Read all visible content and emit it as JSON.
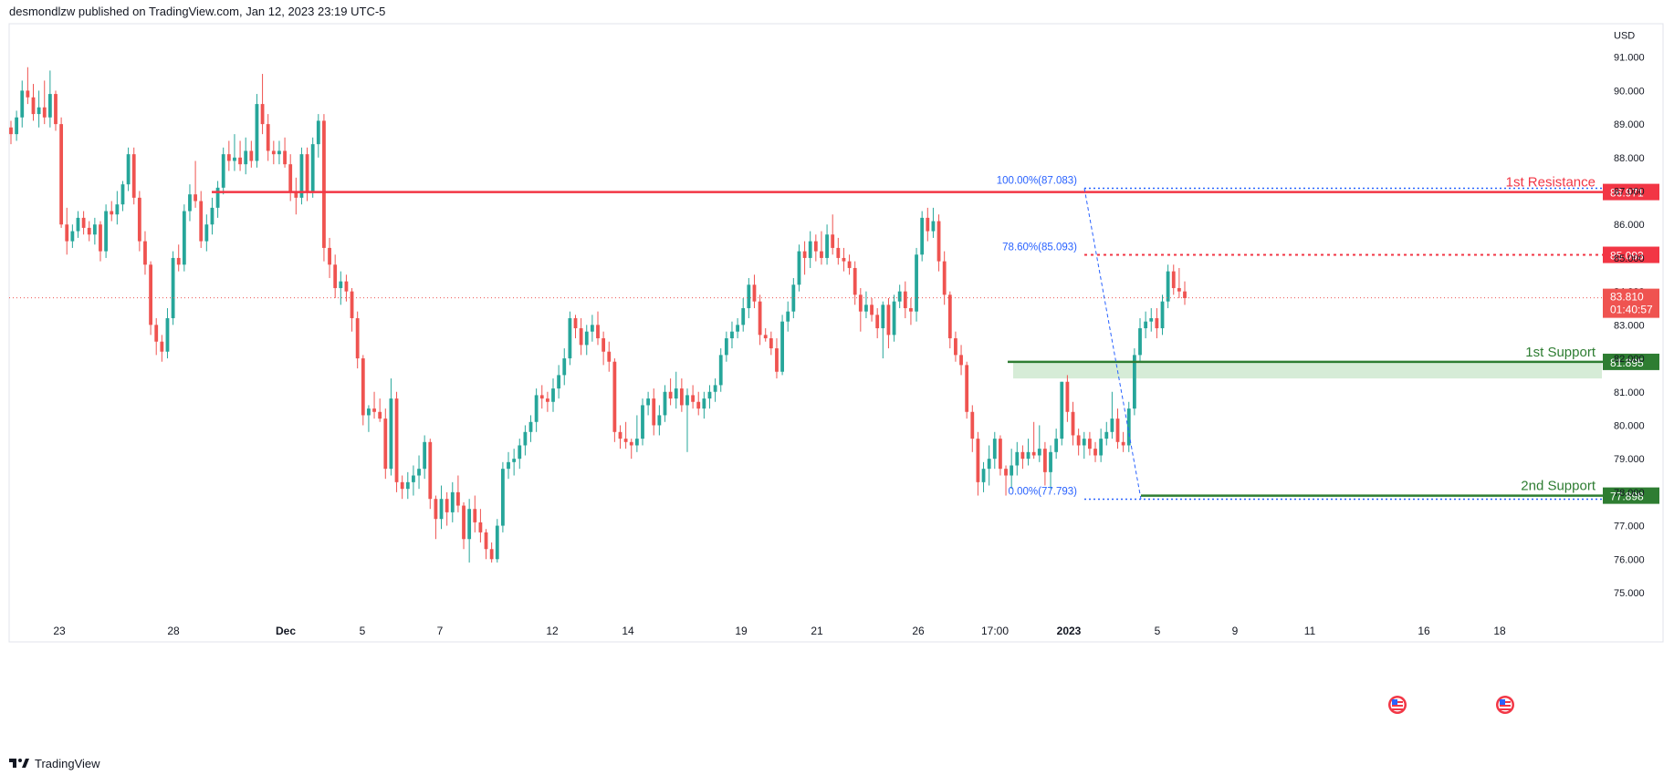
{
  "header": {
    "published": "desmondlzw published on TradingView.com, Jan 12, 2023 23:19 UTC-5"
  },
  "footer": {
    "brand": "TradingView"
  },
  "colors": {
    "up": "#26a69a",
    "down": "#ef5350",
    "resistance": "#f23645",
    "support": "#2e7d32",
    "fib": "#2962ff",
    "zone": "#c8e6c9",
    "axis_text": "#131722"
  },
  "chart_data": {
    "type": "candlestick",
    "currency": "USD",
    "ylim": [
      74.4,
      92.0
    ],
    "y_ticks": [
      "75.000",
      "76.000",
      "77.000",
      "78.000",
      "79.000",
      "80.000",
      "81.000",
      "82.000",
      "83.000",
      "84.000",
      "85.000",
      "86.000",
      "87.000",
      "88.000",
      "89.000",
      "90.000",
      "91.000"
    ],
    "x_ticks": [
      "23",
      "28",
      "Dec",
      "5",
      "7",
      "12",
      "14",
      "19",
      "21",
      "26",
      "17:00",
      "2023",
      "5",
      "9",
      "11",
      "16",
      "18"
    ],
    "levels": [
      {
        "name": "1st Resistance",
        "price": "86.971",
        "kind": "resistance"
      },
      {
        "name": "1st Support",
        "price": "81.895",
        "kind": "support"
      },
      {
        "name": "2nd Support",
        "price": "77.898",
        "kind": "support"
      }
    ],
    "fib": [
      {
        "label": "100.00%(87.083)",
        "price": 87.083
      },
      {
        "label": "78.60%(85.093)",
        "price": 85.093
      },
      {
        "label": "0.00%(77.793)",
        "price": 77.793
      }
    ],
    "fib_marker": {
      "price": "85.093"
    },
    "current": {
      "price": "83.810",
      "countdown": "01:40:57",
      "value": 83.81
    },
    "support_zone": [
      81.4,
      81.895
    ],
    "candles": [
      [
        88.9,
        89.1,
        88.4,
        88.7
      ],
      [
        88.7,
        89.4,
        88.5,
        89.2
      ],
      [
        89.2,
        90.3,
        88.9,
        90.0
      ],
      [
        90.0,
        90.7,
        89.6,
        89.8
      ],
      [
        89.8,
        90.2,
        89.1,
        89.3
      ],
      [
        89.3,
        90.0,
        88.9,
        89.5
      ],
      [
        89.5,
        90.3,
        89.0,
        89.2
      ],
      [
        89.2,
        90.6,
        88.9,
        89.9
      ],
      [
        89.9,
        90.0,
        88.8,
        89.0
      ],
      [
        89.0,
        89.2,
        85.9,
        86.0
      ],
      [
        86.0,
        86.5,
        85.1,
        85.5
      ],
      [
        85.5,
        86.0,
        85.3,
        85.8
      ],
      [
        85.8,
        86.4,
        85.6,
        86.2
      ],
      [
        86.2,
        86.4,
        85.7,
        85.9
      ],
      [
        85.9,
        86.1,
        85.5,
        85.7
      ],
      [
        85.7,
        86.2,
        85.4,
        86.0
      ],
      [
        86.0,
        86.1,
        84.9,
        85.2
      ],
      [
        85.2,
        86.6,
        85.0,
        86.4
      ],
      [
        86.4,
        86.7,
        86.1,
        86.3
      ],
      [
        86.3,
        87.0,
        86.0,
        86.6
      ],
      [
        86.6,
        87.3,
        86.4,
        87.2
      ],
      [
        87.2,
        88.3,
        87.0,
        88.1
      ],
      [
        88.1,
        88.3,
        86.6,
        86.8
      ],
      [
        86.8,
        87.0,
        85.2,
        85.5
      ],
      [
        85.5,
        85.8,
        84.5,
        84.8
      ],
      [
        84.8,
        84.9,
        82.7,
        83.0
      ],
      [
        83.0,
        83.2,
        82.1,
        82.5
      ],
      [
        82.5,
        82.7,
        81.9,
        82.2
      ],
      [
        82.2,
        83.5,
        82.0,
        83.2
      ],
      [
        83.2,
        85.2,
        83.0,
        85.0
      ],
      [
        85.0,
        85.4,
        84.6,
        84.8
      ],
      [
        84.8,
        86.6,
        84.6,
        86.4
      ],
      [
        86.4,
        87.2,
        86.1,
        86.9
      ],
      [
        86.9,
        87.9,
        86.5,
        86.7
      ],
      [
        86.7,
        87.0,
        85.3,
        85.5
      ],
      [
        85.5,
        86.3,
        85.2,
        86.0
      ],
      [
        86.0,
        86.8,
        85.7,
        86.5
      ],
      [
        86.5,
        87.3,
        86.2,
        87.1
      ],
      [
        87.1,
        88.3,
        86.9,
        88.1
      ],
      [
        88.1,
        88.5,
        87.6,
        87.9
      ],
      [
        87.9,
        88.7,
        87.6,
        88.0
      ],
      [
        88.0,
        88.5,
        87.6,
        87.8
      ],
      [
        87.8,
        88.6,
        87.5,
        88.2
      ],
      [
        88.2,
        88.5,
        87.7,
        87.9
      ],
      [
        87.9,
        89.9,
        87.7,
        89.6
      ],
      [
        89.6,
        90.5,
        88.7,
        89.0
      ],
      [
        89.0,
        89.3,
        87.9,
        88.2
      ],
      [
        88.2,
        88.5,
        87.8,
        88.1
      ],
      [
        88.1,
        88.5,
        87.8,
        88.2
      ],
      [
        88.2,
        88.6,
        87.7,
        87.8
      ],
      [
        87.8,
        88.1,
        86.7,
        87.0
      ],
      [
        87.0,
        87.4,
        86.3,
        86.8
      ],
      [
        86.8,
        88.3,
        86.6,
        88.1
      ],
      [
        88.1,
        88.3,
        86.7,
        87.0
      ],
      [
        87.0,
        88.6,
        86.8,
        88.4
      ],
      [
        88.4,
        89.3,
        88.0,
        89.1
      ],
      [
        89.1,
        89.3,
        84.9,
        85.3
      ],
      [
        85.3,
        85.6,
        84.4,
        84.8
      ],
      [
        84.8,
        85.1,
        83.8,
        84.1
      ],
      [
        84.1,
        84.6,
        83.6,
        84.3
      ],
      [
        84.3,
        84.5,
        83.7,
        84.0
      ],
      [
        84.0,
        84.1,
        82.8,
        83.2
      ],
      [
        83.2,
        83.4,
        81.7,
        82.0
      ],
      [
        82.0,
        82.1,
        80.0,
        80.3
      ],
      [
        80.3,
        80.6,
        79.8,
        80.5
      ],
      [
        80.5,
        81.0,
        80.2,
        80.4
      ],
      [
        80.4,
        80.8,
        80.1,
        80.2
      ],
      [
        80.2,
        80.5,
        78.4,
        78.7
      ],
      [
        78.7,
        81.4,
        78.5,
        80.8
      ],
      [
        80.8,
        81.0,
        78.0,
        78.3
      ],
      [
        78.3,
        78.5,
        77.8,
        78.1
      ],
      [
        78.1,
        78.6,
        77.8,
        78.3
      ],
      [
        78.3,
        78.8,
        77.9,
        78.5
      ],
      [
        78.5,
        79.1,
        78.1,
        78.7
      ],
      [
        78.7,
        79.7,
        78.4,
        79.5
      ],
      [
        79.5,
        79.6,
        77.5,
        77.8
      ],
      [
        77.8,
        77.9,
        76.6,
        77.2
      ],
      [
        77.2,
        78.2,
        76.9,
        77.8
      ],
      [
        77.8,
        78.0,
        77.0,
        77.4
      ],
      [
        77.4,
        78.3,
        77.1,
        78.0
      ],
      [
        78.0,
        78.5,
        77.4,
        77.6
      ],
      [
        77.6,
        77.7,
        76.3,
        76.6
      ],
      [
        76.6,
        77.8,
        75.9,
        77.5
      ],
      [
        77.5,
        77.9,
        76.8,
        77.1
      ],
      [
        77.1,
        77.5,
        76.5,
        76.8
      ],
      [
        76.8,
        76.9,
        76.0,
        76.3
      ],
      [
        76.3,
        76.5,
        75.9,
        76.0
      ],
      [
        76.0,
        77.2,
        75.9,
        77.0
      ],
      [
        77.0,
        78.9,
        76.8,
        78.7
      ],
      [
        78.7,
        79.2,
        78.4,
        78.9
      ],
      [
        78.9,
        79.3,
        78.5,
        79.0
      ],
      [
        79.0,
        79.6,
        78.7,
        79.4
      ],
      [
        79.4,
        80.0,
        79.1,
        79.8
      ],
      [
        79.8,
        80.3,
        79.5,
        80.1
      ],
      [
        80.1,
        81.1,
        79.8,
        80.9
      ],
      [
        80.9,
        81.2,
        80.5,
        80.8
      ],
      [
        80.8,
        81.0,
        80.4,
        80.7
      ],
      [
        80.7,
        81.4,
        80.4,
        81.1
      ],
      [
        81.1,
        81.8,
        80.8,
        81.5
      ],
      [
        81.5,
        82.3,
        81.2,
        82.0
      ],
      [
        82.0,
        83.4,
        81.8,
        83.2
      ],
      [
        83.2,
        83.3,
        82.6,
        82.9
      ],
      [
        82.9,
        83.2,
        82.1,
        82.4
      ],
      [
        82.4,
        83.0,
        82.1,
        82.8
      ],
      [
        82.8,
        83.3,
        82.5,
        83.0
      ],
      [
        83.0,
        83.4,
        82.4,
        82.6
      ],
      [
        82.6,
        82.8,
        81.8,
        82.2
      ],
      [
        82.2,
        82.5,
        81.6,
        81.9
      ],
      [
        81.9,
        82.0,
        79.5,
        79.8
      ],
      [
        79.8,
        80.0,
        79.3,
        79.6
      ],
      [
        79.6,
        80.1,
        79.3,
        79.5
      ],
      [
        79.5,
        79.6,
        79.0,
        79.4
      ],
      [
        79.4,
        80.3,
        79.2,
        79.6
      ],
      [
        79.6,
        80.8,
        79.4,
        80.6
      ],
      [
        80.6,
        81.0,
        80.3,
        80.8
      ],
      [
        80.8,
        81.1,
        79.7,
        80.0
      ],
      [
        80.0,
        80.6,
        79.7,
        80.3
      ],
      [
        80.3,
        81.2,
        80.1,
        81.0
      ],
      [
        81.0,
        81.4,
        80.6,
        80.8
      ],
      [
        80.8,
        81.6,
        80.5,
        81.1
      ],
      [
        81.1,
        81.4,
        80.4,
        80.6
      ],
      [
        80.6,
        81.1,
        79.2,
        80.9
      ],
      [
        80.9,
        81.2,
        80.5,
        80.7
      ],
      [
        80.7,
        81.0,
        80.3,
        80.5
      ],
      [
        80.5,
        81.0,
        80.2,
        80.8
      ],
      [
        80.8,
        81.2,
        80.5,
        81.0
      ],
      [
        81.0,
        81.4,
        80.7,
        81.2
      ],
      [
        81.2,
        82.3,
        81.0,
        82.1
      ],
      [
        82.1,
        82.8,
        81.9,
        82.6
      ],
      [
        82.6,
        83.1,
        82.3,
        82.8
      ],
      [
        82.8,
        83.2,
        82.6,
        83.0
      ],
      [
        83.0,
        83.8,
        82.8,
        83.5
      ],
      [
        83.5,
        84.4,
        83.2,
        84.2
      ],
      [
        84.2,
        84.5,
        83.5,
        83.7
      ],
      [
        83.7,
        83.9,
        82.4,
        82.7
      ],
      [
        82.7,
        82.9,
        82.5,
        82.6
      ],
      [
        82.6,
        82.8,
        82.1,
        82.3
      ],
      [
        82.3,
        82.6,
        81.4,
        81.6
      ],
      [
        81.6,
        83.3,
        81.5,
        83.1
      ],
      [
        83.1,
        83.7,
        82.8,
        83.4
      ],
      [
        83.4,
        84.4,
        83.2,
        84.2
      ],
      [
        84.2,
        85.4,
        84.0,
        85.2
      ],
      [
        85.2,
        85.5,
        84.5,
        85.0
      ],
      [
        85.0,
        85.8,
        84.7,
        85.5
      ],
      [
        85.5,
        85.7,
        84.9,
        85.2
      ],
      [
        85.2,
        85.8,
        84.8,
        85.0
      ],
      [
        85.0,
        86.0,
        84.8,
        85.7
      ],
      [
        85.7,
        86.3,
        85.1,
        85.3
      ],
      [
        85.3,
        85.6,
        84.8,
        85.0
      ],
      [
        85.0,
        85.3,
        84.6,
        84.9
      ],
      [
        84.9,
        85.1,
        84.5,
        84.7
      ],
      [
        84.7,
        84.9,
        83.6,
        83.9
      ],
      [
        83.9,
        84.1,
        82.8,
        83.4
      ],
      [
        83.4,
        84.0,
        83.2,
        83.6
      ],
      [
        83.6,
        83.8,
        83.1,
        83.3
      ],
      [
        83.3,
        83.5,
        82.6,
        82.9
      ],
      [
        82.9,
        83.7,
        82.0,
        83.6
      ],
      [
        83.6,
        83.8,
        82.3,
        82.7
      ],
      [
        82.7,
        83.9,
        82.5,
        83.7
      ],
      [
        83.7,
        84.2,
        83.5,
        84.0
      ],
      [
        84.0,
        84.3,
        83.2,
        83.5
      ],
      [
        83.5,
        83.8,
        83.0,
        83.4
      ],
      [
        83.4,
        85.3,
        83.1,
        85.1
      ],
      [
        85.1,
        86.4,
        84.9,
        86.2
      ],
      [
        86.2,
        86.5,
        85.5,
        85.8
      ],
      [
        85.8,
        86.5,
        85.6,
        86.1
      ],
      [
        86.1,
        86.3,
        84.6,
        84.9
      ],
      [
        84.9,
        85.2,
        83.6,
        83.9
      ],
      [
        83.9,
        84.0,
        82.3,
        82.6
      ],
      [
        82.6,
        82.8,
        81.9,
        82.1
      ],
      [
        82.1,
        82.4,
        81.5,
        81.8
      ],
      [
        81.8,
        81.9,
        80.2,
        80.4
      ],
      [
        80.4,
        80.6,
        79.2,
        79.6
      ],
      [
        79.6,
        79.8,
        77.9,
        78.3
      ],
      [
        78.3,
        78.9,
        78.0,
        78.7
      ],
      [
        78.7,
        79.4,
        78.2,
        79.0
      ],
      [
        79.0,
        79.8,
        78.7,
        79.6
      ],
      [
        79.6,
        79.7,
        78.5,
        78.7
      ],
      [
        78.7,
        78.8,
        77.9,
        78.5
      ],
      [
        78.5,
        79.3,
        78.1,
        78.8
      ],
      [
        78.8,
        79.5,
        78.5,
        79.2
      ],
      [
        79.2,
        79.4,
        78.7,
        79.0
      ],
      [
        79.0,
        79.6,
        78.8,
        79.2
      ],
      [
        79.2,
        80.1,
        79.0,
        79.1
      ],
      [
        79.1,
        80.0,
        78.9,
        79.3
      ],
      [
        79.3,
        79.5,
        78.2,
        78.6
      ],
      [
        78.6,
        79.4,
        78.1,
        79.2
      ],
      [
        79.2,
        79.9,
        79.0,
        79.6
      ],
      [
        79.6,
        81.3,
        79.4,
        81.3
      ],
      [
        81.3,
        81.5,
        80.1,
        80.4
      ],
      [
        80.4,
        80.7,
        79.4,
        79.7
      ],
      [
        79.7,
        79.9,
        79.1,
        79.4
      ],
      [
        79.4,
        79.8,
        79.0,
        79.6
      ],
      [
        79.6,
        79.8,
        79.1,
        79.3
      ],
      [
        79.3,
        79.5,
        78.9,
        79.1
      ],
      [
        79.1,
        79.9,
        78.9,
        79.6
      ],
      [
        79.6,
        80.1,
        79.4,
        79.8
      ],
      [
        79.8,
        81.0,
        79.6,
        80.2
      ],
      [
        80.2,
        80.5,
        79.3,
        79.5
      ],
      [
        79.5,
        79.8,
        79.2,
        79.4
      ],
      [
        79.4,
        80.7,
        79.2,
        80.5
      ],
      [
        80.5,
        82.3,
        80.3,
        82.1
      ],
      [
        82.1,
        83.2,
        81.9,
        82.9
      ],
      [
        82.9,
        83.4,
        82.6,
        83.1
      ],
      [
        83.1,
        83.5,
        82.8,
        83.2
      ],
      [
        83.2,
        83.5,
        82.6,
        82.9
      ],
      [
        82.9,
        83.9,
        82.7,
        83.7
      ],
      [
        83.7,
        84.8,
        83.5,
        84.6
      ],
      [
        84.6,
        84.8,
        83.9,
        84.1
      ],
      [
        84.1,
        84.7,
        83.8,
        84.0
      ],
      [
        84.0,
        84.3,
        83.6,
        83.8
      ]
    ]
  }
}
